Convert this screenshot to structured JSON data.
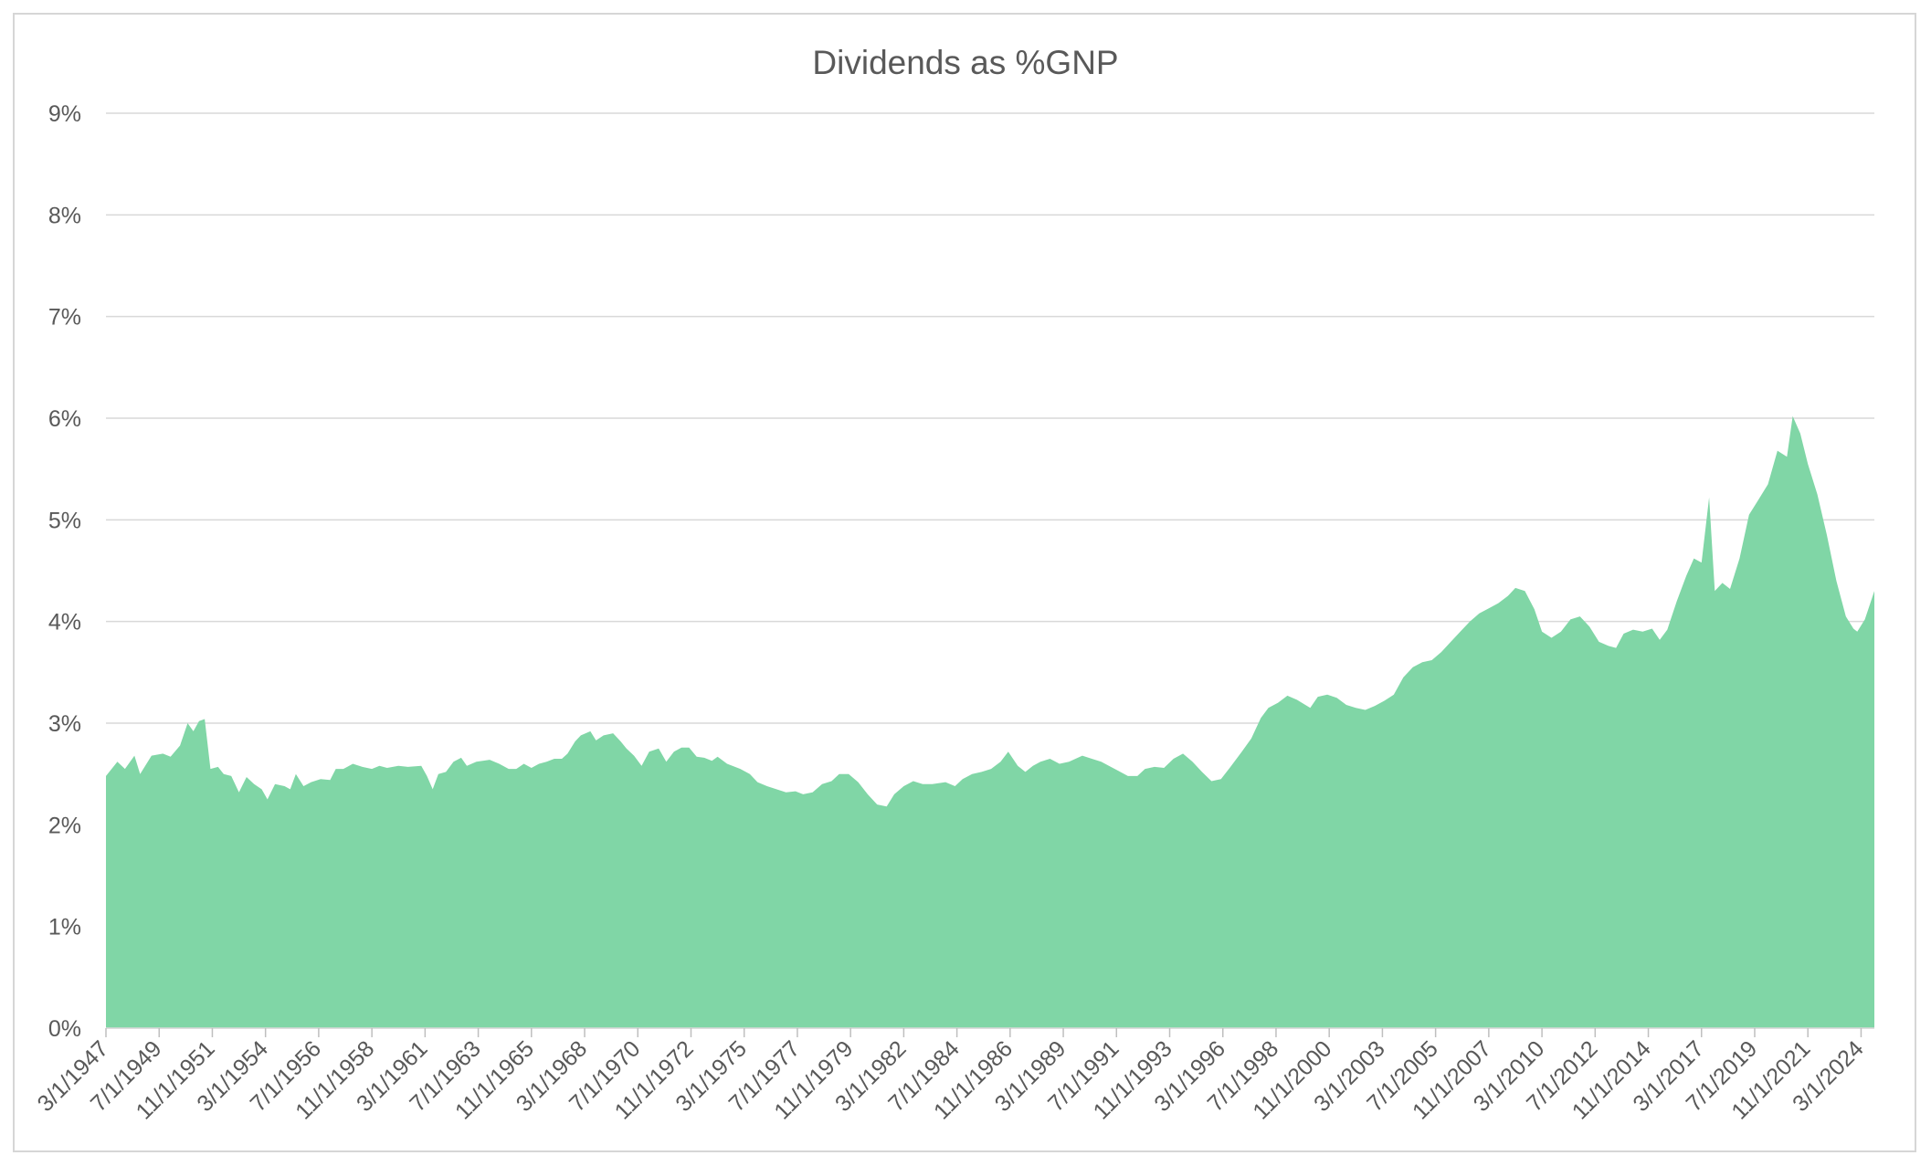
{
  "chart_data": {
    "type": "area",
    "title": "Dividends as %GNP",
    "xlabel": "",
    "ylabel": "",
    "ylim": [
      0,
      9
    ],
    "y_ticks": [
      "0%",
      "1%",
      "2%",
      "3%",
      "4%",
      "5%",
      "6%",
      "7%",
      "8%",
      "9%"
    ],
    "x_tick_labels": [
      "3/1/1947",
      "7/1/1949",
      "11/1/1951",
      "3/1/1954",
      "7/1/1956",
      "11/1/1958",
      "3/1/1961",
      "7/1/1963",
      "11/1/1965",
      "3/1/1968",
      "7/1/1970",
      "11/1/1972",
      "3/1/1975",
      "7/1/1977",
      "11/1/1979",
      "3/1/1982",
      "7/1/1984",
      "11/1/1986",
      "3/1/1989",
      "7/1/1991",
      "11/1/1993",
      "3/1/1996",
      "7/1/1998",
      "11/1/2000",
      "3/1/2003",
      "7/1/2005",
      "11/1/2007",
      "3/1/2010",
      "7/1/2012",
      "11/1/2014",
      "3/1/2017",
      "7/1/2019",
      "11/1/2021",
      "3/1/2024"
    ],
    "x_range": [
      "3/1/1947",
      "10/1/2024"
    ],
    "grid": true,
    "fill_color": "#80d6a6",
    "gridline_color": "#d9d9d9",
    "series": [
      {
        "points": [
          [
            "1947-03-01",
            2.48
          ],
          [
            "1947-09-01",
            2.62
          ],
          [
            "1948-01-01",
            2.55
          ],
          [
            "1948-06-01",
            2.68
          ],
          [
            "1948-09-01",
            2.5
          ],
          [
            "1949-03-01",
            2.68
          ],
          [
            "1949-09-01",
            2.7
          ],
          [
            "1950-01-01",
            2.67
          ],
          [
            "1950-06-01",
            2.78
          ],
          [
            "1950-10-01",
            3.0
          ],
          [
            "1951-01-01",
            2.92
          ],
          [
            "1951-04-01",
            3.02
          ],
          [
            "1951-07-01",
            3.04
          ],
          [
            "1951-10-01",
            2.55
          ],
          [
            "1952-02-01",
            2.57
          ],
          [
            "1952-05-01",
            2.5
          ],
          [
            "1952-09-01",
            2.48
          ],
          [
            "1953-01-01",
            2.32
          ],
          [
            "1953-05-01",
            2.47
          ],
          [
            "1953-09-01",
            2.4
          ],
          [
            "1954-01-01",
            2.35
          ],
          [
            "1954-04-01",
            2.25
          ],
          [
            "1954-08-01",
            2.4
          ],
          [
            "1955-01-01",
            2.38
          ],
          [
            "1955-04-01",
            2.35
          ],
          [
            "1955-07-01",
            2.5
          ],
          [
            "1955-11-01",
            2.38
          ],
          [
            "1956-03-01",
            2.42
          ],
          [
            "1956-08-01",
            2.45
          ],
          [
            "1957-01-01",
            2.44
          ],
          [
            "1957-04-01",
            2.55
          ],
          [
            "1957-08-01",
            2.55
          ],
          [
            "1958-01-01",
            2.6
          ],
          [
            "1958-06-01",
            2.57
          ],
          [
            "1958-11-01",
            2.55
          ],
          [
            "1959-03-01",
            2.58
          ],
          [
            "1959-07-01",
            2.56
          ],
          [
            "1960-01-01",
            2.58
          ],
          [
            "1960-06-01",
            2.57
          ],
          [
            "1961-01-01",
            2.58
          ],
          [
            "1961-04-01",
            2.48
          ],
          [
            "1961-07-01",
            2.35
          ],
          [
            "1961-10-01",
            2.5
          ],
          [
            "1962-02-01",
            2.52
          ],
          [
            "1962-06-01",
            2.62
          ],
          [
            "1962-10-01",
            2.66
          ],
          [
            "1963-01-01",
            2.58
          ],
          [
            "1963-06-01",
            2.62
          ],
          [
            "1964-01-01",
            2.64
          ],
          [
            "1964-06-01",
            2.6
          ],
          [
            "1964-11-01",
            2.55
          ],
          [
            "1965-03-01",
            2.55
          ],
          [
            "1965-07-01",
            2.6
          ],
          [
            "1965-11-01",
            2.56
          ],
          [
            "1966-03-01",
            2.6
          ],
          [
            "1966-07-01",
            2.62
          ],
          [
            "1966-11-01",
            2.65
          ],
          [
            "1967-03-01",
            2.65
          ],
          [
            "1967-06-01",
            2.7
          ],
          [
            "1967-10-01",
            2.82
          ],
          [
            "1968-01-01",
            2.88
          ],
          [
            "1968-06-01",
            2.92
          ],
          [
            "1968-09-01",
            2.83
          ],
          [
            "1969-01-01",
            2.88
          ],
          [
            "1969-06-01",
            2.9
          ],
          [
            "1969-10-01",
            2.82
          ],
          [
            "1970-01-01",
            2.75
          ],
          [
            "1970-05-01",
            2.68
          ],
          [
            "1970-09-01",
            2.58
          ],
          [
            "1971-01-01",
            2.72
          ],
          [
            "1971-06-01",
            2.75
          ],
          [
            "1971-10-01",
            2.62
          ],
          [
            "1972-02-01",
            2.72
          ],
          [
            "1972-06-01",
            2.76
          ],
          [
            "1972-10-01",
            2.76
          ],
          [
            "1973-02-01",
            2.67
          ],
          [
            "1973-06-01",
            2.66
          ],
          [
            "1973-10-01",
            2.63
          ],
          [
            "1974-01-01",
            2.67
          ],
          [
            "1974-06-01",
            2.6
          ],
          [
            "1975-01-01",
            2.55
          ],
          [
            "1975-06-01",
            2.5
          ],
          [
            "1975-10-01",
            2.42
          ],
          [
            "1976-03-01",
            2.38
          ],
          [
            "1976-08-01",
            2.35
          ],
          [
            "1977-01-01",
            2.32
          ],
          [
            "1977-06-01",
            2.33
          ],
          [
            "1977-10-01",
            2.3
          ],
          [
            "1978-03-01",
            2.32
          ],
          [
            "1978-08-01",
            2.4
          ],
          [
            "1979-01-01",
            2.43
          ],
          [
            "1979-05-01",
            2.5
          ],
          [
            "1979-10-01",
            2.5
          ],
          [
            "1980-03-01",
            2.42
          ],
          [
            "1980-08-01",
            2.3
          ],
          [
            "1981-01-01",
            2.2
          ],
          [
            "1981-06-01",
            2.18
          ],
          [
            "1981-10-01",
            2.3
          ],
          [
            "1982-03-01",
            2.38
          ],
          [
            "1982-08-01",
            2.43
          ],
          [
            "1983-01-01",
            2.4
          ],
          [
            "1983-06-01",
            2.4
          ],
          [
            "1984-01-01",
            2.42
          ],
          [
            "1984-06-01",
            2.38
          ],
          [
            "1984-10-01",
            2.45
          ],
          [
            "1985-03-01",
            2.5
          ],
          [
            "1985-08-01",
            2.52
          ],
          [
            "1986-01-01",
            2.55
          ],
          [
            "1986-06-01",
            2.62
          ],
          [
            "1986-10-01",
            2.72
          ],
          [
            "1987-03-01",
            2.58
          ],
          [
            "1987-07-01",
            2.52
          ],
          [
            "1987-11-01",
            2.58
          ],
          [
            "1988-03-01",
            2.62
          ],
          [
            "1988-08-01",
            2.65
          ],
          [
            "1989-01-01",
            2.6
          ],
          [
            "1989-06-01",
            2.62
          ],
          [
            "1990-01-01",
            2.68
          ],
          [
            "1990-06-01",
            2.65
          ],
          [
            "1990-11-01",
            2.62
          ],
          [
            "1991-03-01",
            2.58
          ],
          [
            "1991-08-01",
            2.53
          ],
          [
            "1992-01-01",
            2.48
          ],
          [
            "1992-06-01",
            2.48
          ],
          [
            "1992-10-01",
            2.55
          ],
          [
            "1993-03-01",
            2.57
          ],
          [
            "1993-08-01",
            2.56
          ],
          [
            "1994-01-01",
            2.65
          ],
          [
            "1994-06-01",
            2.7
          ],
          [
            "1994-11-01",
            2.62
          ],
          [
            "1995-04-01",
            2.52
          ],
          [
            "1995-09-01",
            2.43
          ],
          [
            "1996-02-01",
            2.45
          ],
          [
            "1996-07-01",
            2.57
          ],
          [
            "1997-01-01",
            2.72
          ],
          [
            "1997-06-01",
            2.85
          ],
          [
            "1997-11-01",
            3.05
          ],
          [
            "1998-03-01",
            3.15
          ],
          [
            "1998-08-01",
            3.2
          ],
          [
            "1999-01-01",
            3.27
          ],
          [
            "1999-06-01",
            3.23
          ],
          [
            "2000-01-01",
            3.15
          ],
          [
            "2000-05-01",
            3.26
          ],
          [
            "2000-10-01",
            3.28
          ],
          [
            "2001-03-01",
            3.25
          ],
          [
            "2001-08-01",
            3.18
          ],
          [
            "2002-01-01",
            3.15
          ],
          [
            "2002-06-01",
            3.13
          ],
          [
            "2002-11-01",
            3.17
          ],
          [
            "2003-04-01",
            3.22
          ],
          [
            "2003-09-01",
            3.28
          ],
          [
            "2004-02-01",
            3.45
          ],
          [
            "2004-07-01",
            3.55
          ],
          [
            "2004-12-01",
            3.6
          ],
          [
            "2005-05-01",
            3.62
          ],
          [
            "2005-10-01",
            3.7
          ],
          [
            "2006-03-01",
            3.8
          ],
          [
            "2006-08-01",
            3.9
          ],
          [
            "2007-01-01",
            4.0
          ],
          [
            "2007-06-01",
            4.08
          ],
          [
            "2007-11-01",
            4.13
          ],
          [
            "2008-04-01",
            4.18
          ],
          [
            "2008-09-01",
            4.25
          ],
          [
            "2009-01-01",
            4.33
          ],
          [
            "2009-06-01",
            4.3
          ],
          [
            "2009-11-01",
            4.12
          ],
          [
            "2010-03-01",
            3.9
          ],
          [
            "2010-08-01",
            3.84
          ],
          [
            "2011-01-01",
            3.9
          ],
          [
            "2011-06-01",
            4.02
          ],
          [
            "2011-11-01",
            4.05
          ],
          [
            "2012-04-01",
            3.95
          ],
          [
            "2012-09-01",
            3.8
          ],
          [
            "2013-02-01",
            3.76
          ],
          [
            "2013-06-01",
            3.74
          ],
          [
            "2013-10-01",
            3.88
          ],
          [
            "2014-03-01",
            3.92
          ],
          [
            "2014-08-01",
            3.9
          ],
          [
            "2015-01-01",
            3.93
          ],
          [
            "2015-05-01",
            3.82
          ],
          [
            "2015-09-01",
            3.92
          ],
          [
            "2016-02-01",
            4.2
          ],
          [
            "2016-07-01",
            4.45
          ],
          [
            "2016-11-01",
            4.62
          ],
          [
            "2017-03-01",
            4.58
          ],
          [
            "2017-07-01",
            5.22
          ],
          [
            "2017-10-01",
            4.3
          ],
          [
            "2018-02-01",
            4.38
          ],
          [
            "2018-06-01",
            4.32
          ],
          [
            "2018-11-01",
            4.62
          ],
          [
            "2019-04-01",
            5.05
          ],
          [
            "2019-09-01",
            5.2
          ],
          [
            "2020-02-01",
            5.35
          ],
          [
            "2020-07-01",
            5.68
          ],
          [
            "2020-12-01",
            5.62
          ],
          [
            "2021-03-01",
            6.02
          ],
          [
            "2021-07-01",
            5.85
          ],
          [
            "2021-11-01",
            5.55
          ],
          [
            "2022-04-01",
            5.25
          ],
          [
            "2022-09-01",
            4.85
          ],
          [
            "2023-02-01",
            4.4
          ],
          [
            "2023-07-01",
            4.05
          ],
          [
            "2023-11-01",
            3.93
          ],
          [
            "2024-01-01",
            3.9
          ],
          [
            "2024-05-01",
            4.02
          ],
          [
            "2024-10-01",
            4.3
          ]
        ]
      }
    ]
  }
}
